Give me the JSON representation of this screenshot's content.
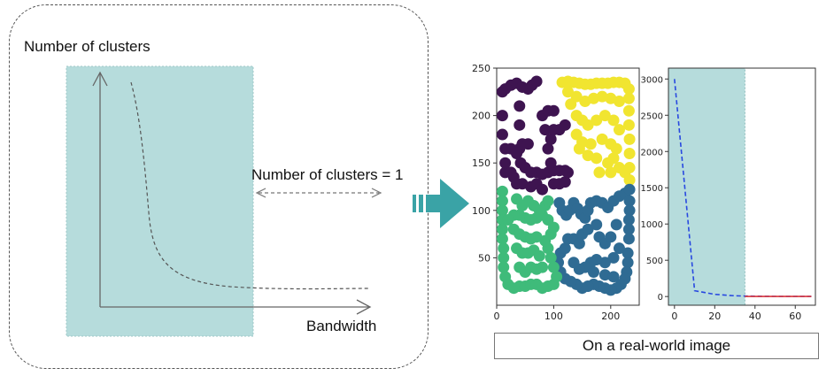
{
  "left_panel": {
    "y_axis_label": "Number of clusters",
    "x_axis_label": "Bandwidth",
    "annotation": "Number of clusters = 1"
  },
  "caption": "On a real-world image",
  "colors": {
    "highlight": "#b6dcdc",
    "arrow": "#3aa3a6",
    "purple": "#3e1450",
    "yellow": "#f1e530",
    "teal_blue": "#2f6b93",
    "green": "#3fbb7a",
    "dashed_line": "#2848e0",
    "flat_line": "#d8343a"
  },
  "chart_data": [
    {
      "type": "scatter",
      "title": "",
      "xlim": [
        0,
        250
      ],
      "ylim": [
        0,
        250
      ],
      "x_ticks": [
        "0",
        "100",
        "200"
      ],
      "y_ticks": [
        "50",
        "100",
        "150",
        "200",
        "250"
      ],
      "series": [
        {
          "color": "purple",
          "points": [
            [
              10,
              225
            ],
            [
              10,
              200
            ],
            [
              10,
              180
            ],
            [
              15,
              228
            ],
            [
              25,
              232
            ],
            [
              35,
              234
            ],
            [
              45,
              230
            ],
            [
              55,
              228
            ],
            [
              62,
              232
            ],
            [
              70,
              236
            ],
            [
              40,
              210
            ],
            [
              40,
              190
            ],
            [
              40,
              165
            ],
            [
              42,
              150
            ],
            [
              50,
              145
            ],
            [
              60,
              140
            ],
            [
              70,
              140
            ],
            [
              80,
              138
            ],
            [
              90,
              140
            ],
            [
              100,
              142
            ],
            [
              110,
              142
            ],
            [
              120,
              142
            ],
            [
              95,
              150
            ],
            [
              90,
              165
            ],
            [
              95,
              175
            ],
            [
              100,
              185
            ],
            [
              110,
              185
            ],
            [
              120,
              190
            ],
            [
              85,
              185
            ],
            [
              80,
              200
            ],
            [
              90,
              205
            ],
            [
              100,
              205
            ],
            [
              15,
              165
            ],
            [
              25,
              165
            ],
            [
              35,
              160
            ],
            [
              45,
              170
            ],
            [
              55,
              170
            ],
            [
              15,
              140
            ],
            [
              15,
              150
            ],
            [
              25,
              140
            ],
            [
              30,
              135
            ],
            [
              35,
              128
            ],
            [
              45,
              128
            ],
            [
              60,
              125
            ],
            [
              70,
              128
            ],
            [
              80,
              122
            ],
            [
              100,
              128
            ],
            [
              110,
              128
            ],
            [
              120,
              130
            ],
            [
              125,
              140
            ]
          ]
        },
        {
          "color": "yellow",
          "points": [
            [
              115,
              235
            ],
            [
              125,
              236
            ],
            [
              135,
              235
            ],
            [
              145,
              234
            ],
            [
              155,
              233
            ],
            [
              165,
              233
            ],
            [
              175,
              234
            ],
            [
              185,
              234
            ],
            [
              195,
              234
            ],
            [
              205,
              235
            ],
            [
              215,
              235
            ],
            [
              225,
              234
            ],
            [
              232,
              228
            ],
            [
              232,
              218
            ],
            [
              232,
              205
            ],
            [
              232,
              190
            ],
            [
              233,
              175
            ],
            [
              233,
              160
            ],
            [
              233,
              145
            ],
            [
              233,
              132
            ],
            [
              125,
              225
            ],
            [
              130,
              212
            ],
            [
              140,
              220
            ],
            [
              155,
              215
            ],
            [
              170,
              218
            ],
            [
              185,
              220
            ],
            [
              200,
              218
            ],
            [
              215,
              215
            ],
            [
              140,
              200
            ],
            [
              150,
              195
            ],
            [
              160,
              190
            ],
            [
              175,
              195
            ],
            [
              190,
              200
            ],
            [
              205,
              195
            ],
            [
              215,
              185
            ],
            [
              140,
              180
            ],
            [
              150,
              172
            ],
            [
              165,
              170
            ],
            [
              185,
              175
            ],
            [
              200,
              170
            ],
            [
              210,
              165
            ],
            [
              145,
              165
            ],
            [
              160,
              158
            ],
            [
              175,
              155
            ],
            [
              195,
              150
            ],
            [
              205,
              155
            ],
            [
              215,
              145
            ],
            [
              225,
              140
            ],
            [
              180,
              140
            ],
            [
              200,
              140
            ]
          ]
        },
        {
          "color": "teal_blue",
          "points": [
            [
              110,
              108
            ],
            [
              115,
              100
            ],
            [
              122,
              95
            ],
            [
              128,
              100
            ],
            [
              135,
              108
            ],
            [
              142,
              102
            ],
            [
              148,
              96
            ],
            [
              155,
              92
            ],
            [
              160,
              100
            ],
            [
              165,
              108
            ],
            [
              175,
              110
            ],
            [
              185,
              108
            ],
            [
              195,
              103
            ],
            [
              205,
              110
            ],
            [
              215,
              115
            ],
            [
              225,
              118
            ],
            [
              233,
              122
            ],
            [
              233,
              110
            ],
            [
              233,
              100
            ],
            [
              232,
              90
            ],
            [
              232,
              80
            ],
            [
              232,
              70
            ],
            [
              230,
              55
            ],
            [
              230,
              45
            ],
            [
              228,
              35
            ],
            [
              225,
              28
            ],
            [
              218,
              22
            ],
            [
              210,
              18
            ],
            [
              200,
              16
            ],
            [
              190,
              18
            ],
            [
              180,
              20
            ],
            [
              170,
              22
            ],
            [
              160,
              20
            ],
            [
              150,
              18
            ],
            [
              140,
              22
            ],
            [
              130,
              25
            ],
            [
              120,
              28
            ],
            [
              112,
              35
            ],
            [
              108,
              45
            ],
            [
              112,
              55
            ],
            [
              120,
              60
            ],
            [
              125,
              70
            ],
            [
              135,
              70
            ],
            [
              145,
              65
            ],
            [
              150,
              75
            ],
            [
              160,
              80
            ],
            [
              175,
              85
            ],
            [
              180,
              72
            ],
            [
              190,
              65
            ],
            [
              200,
              72
            ],
            [
              210,
              85
            ],
            [
              215,
              60
            ],
            [
              205,
              50
            ],
            [
              190,
              45
            ],
            [
              175,
              48
            ],
            [
              165,
              45
            ],
            [
              155,
              40
            ],
            [
              145,
              38
            ],
            [
              135,
              45
            ],
            [
              170,
              35
            ],
            [
              190,
              32
            ],
            [
              205,
              30
            ]
          ]
        },
        {
          "color": "green",
          "points": [
            [
              10,
              120
            ],
            [
              10,
              110
            ],
            [
              10,
              100
            ],
            [
              10,
              90
            ],
            [
              10,
              80
            ],
            [
              10,
              70
            ],
            [
              12,
              60
            ],
            [
              12,
              50
            ],
            [
              12,
              40
            ],
            [
              15,
              30
            ],
            [
              20,
              22
            ],
            [
              30,
              18
            ],
            [
              40,
              20
            ],
            [
              50,
              20
            ],
            [
              60,
              22
            ],
            [
              70,
              22
            ],
            [
              80,
              18
            ],
            [
              90,
              20
            ],
            [
              100,
              22
            ],
            [
              105,
              30
            ],
            [
              100,
              40
            ],
            [
              95,
              50
            ],
            [
              90,
              60
            ],
            [
              85,
              68
            ],
            [
              95,
              75
            ],
            [
              100,
              82
            ],
            [
              90,
              90
            ],
            [
              80,
              95
            ],
            [
              70,
              92
            ],
            [
              60,
              90
            ],
            [
              50,
              92
            ],
            [
              40,
              95
            ],
            [
              30,
              95
            ],
            [
              20,
              90
            ],
            [
              30,
              80
            ],
            [
              40,
              75
            ],
            [
              50,
              72
            ],
            [
              60,
              70
            ],
            [
              70,
              72
            ],
            [
              35,
              60
            ],
            [
              45,
              55
            ],
            [
              55,
              55
            ],
            [
              65,
              58
            ],
            [
              75,
              52
            ],
            [
              40,
              40
            ],
            [
              50,
              35
            ],
            [
              60,
              40
            ],
            [
              70,
              38
            ],
            [
              80,
              40
            ],
            [
              75,
              100
            ],
            [
              85,
              105
            ],
            [
              65,
              105
            ],
            [
              55,
              110
            ],
            [
              45,
              105
            ],
            [
              35,
              112
            ],
            [
              90,
              110
            ]
          ]
        }
      ]
    },
    {
      "type": "line",
      "title": "",
      "xlim": [
        -3,
        70
      ],
      "ylim": [
        -120,
        3150
      ],
      "x_ticks": [
        "0",
        "20",
        "40",
        "60"
      ],
      "y_ticks": [
        "0",
        "500",
        "1000",
        "1500",
        "2000",
        "2500",
        "3000"
      ],
      "highlight_x_range": [
        -3,
        35
      ],
      "series": [
        {
          "color": "dashed_line",
          "style": "dashed",
          "x": [
            0,
            10,
            20,
            30,
            40,
            50,
            60,
            68
          ],
          "y": [
            3000,
            80,
            30,
            10,
            4,
            2,
            1,
            1
          ]
        },
        {
          "color": "flat_line",
          "style": "solid",
          "x": [
            35,
            68
          ],
          "y": [
            1,
            1
          ]
        }
      ]
    }
  ]
}
